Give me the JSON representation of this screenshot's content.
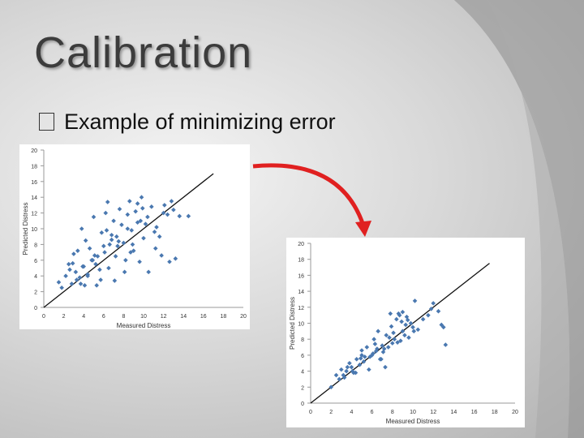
{
  "slide": {
    "title": "Calibration",
    "bullet": "Example of minimizing error"
  },
  "colors": {
    "points": "#4a78b0",
    "line": "#111111",
    "arrow": "#e02020"
  },
  "chart_data": [
    {
      "type": "scatter",
      "title": "",
      "xlabel": "Measured Distress",
      "ylabel": "Predicted Distress",
      "xlim": [
        0,
        20
      ],
      "ylim": [
        0,
        20
      ],
      "xticks": [
        0,
        2,
        4,
        6,
        8,
        10,
        12,
        14,
        16,
        18,
        20
      ],
      "yticks": [
        0,
        2,
        4,
        6,
        8,
        10,
        12,
        14,
        16,
        18,
        20
      ],
      "reference_line": {
        "x": [
          0,
          17
        ],
        "y": [
          0,
          17
        ]
      },
      "x": [
        1.5,
        1.8,
        2.2,
        2.5,
        2.8,
        3.0,
        3.2,
        3.4,
        3.6,
        3.8,
        4.0,
        4.2,
        4.4,
        4.6,
        4.8,
        5.0,
        5.2,
        5.4,
        5.6,
        5.8,
        6.0,
        6.2,
        6.4,
        6.6,
        6.8,
        7.0,
        7.2,
        7.4,
        7.6,
        7.8,
        8.0,
        8.2,
        8.4,
        8.6,
        8.8,
        9.0,
        9.2,
        9.4,
        9.6,
        9.8,
        10.0,
        10.4,
        10.8,
        11.2,
        11.6,
        12.0,
        12.4,
        12.8,
        13.2,
        13.6,
        2.6,
        3.3,
        4.1,
        4.9,
        5.7,
        6.5,
        7.3,
        8.1,
        8.9,
        9.7,
        10.5,
        11.3,
        12.1,
        3.9,
        5.1,
        6.3,
        7.5,
        8.7,
        9.9,
        11.1,
        6.8,
        7.1,
        5.3,
        4.4,
        2.9,
        3.7,
        6.1,
        8.4,
        9.4,
        12.6,
        14.5,
        13.0,
        11.8,
        10.2
      ],
      "y": [
        3.2,
        2.5,
        4.0,
        5.5,
        3.0,
        6.8,
        4.5,
        7.2,
        3.8,
        10.0,
        5.2,
        8.5,
        4.0,
        7.5,
        6.0,
        11.5,
        5.5,
        6.5,
        4.8,
        9.5,
        7.8,
        12.0,
        13.4,
        8.0,
        9.2,
        11.0,
        6.5,
        7.8,
        12.5,
        10.5,
        8.2,
        6.0,
        11.8,
        13.5,
        9.8,
        7.2,
        12.2,
        10.8,
        5.8,
        14.0,
        8.8,
        11.5,
        12.8,
        7.5,
        9.0,
        12.0,
        11.8,
        13.5,
        6.2,
        11.6,
        4.8,
        3.5,
        2.8,
        6.0,
        3.5,
        5.0,
        9.0,
        4.5,
        8.0,
        11.0,
        4.5,
        10.2,
        13.0,
        5.2,
        6.6,
        9.8,
        8.4,
        7.0,
        12.6,
        9.6,
        8.6,
        3.4,
        2.8,
        4.2,
        5.6,
        3.0,
        7.0,
        10.0,
        13.2,
        5.8,
        11.6,
        12.4,
        6.6,
        10.6
      ]
    },
    {
      "type": "scatter",
      "title": "",
      "xlabel": "Measured Distress",
      "ylabel": "Predicted Distress",
      "xlim": [
        0,
        20
      ],
      "ylim": [
        0,
        20
      ],
      "xticks": [
        0,
        2,
        4,
        6,
        8,
        10,
        12,
        14,
        16,
        18,
        20
      ],
      "yticks": [
        0,
        2,
        4,
        6,
        8,
        10,
        12,
        14,
        16,
        18,
        20
      ],
      "reference_line": {
        "x": [
          0,
          17.5
        ],
        "y": [
          0,
          17.5
        ]
      },
      "x": [
        2.0,
        2.5,
        2.8,
        3.0,
        3.2,
        3.5,
        3.8,
        4.0,
        4.2,
        4.5,
        4.8,
        5.0,
        5.2,
        5.5,
        5.8,
        6.0,
        6.2,
        6.4,
        6.6,
        6.8,
        7.0,
        7.2,
        7.4,
        7.6,
        7.8,
        8.0,
        8.2,
        8.4,
        8.6,
        8.8,
        9.0,
        9.2,
        9.4,
        9.6,
        9.8,
        10.0,
        10.2,
        10.5,
        11.0,
        11.5,
        12.0,
        12.5,
        13.0,
        13.2,
        3.6,
        4.4,
        5.3,
        6.1,
        6.9,
        7.7,
        8.5,
        9.3,
        10.1,
        5.7,
        6.5,
        7.3,
        8.1,
        8.9,
        4.1,
        4.9,
        6.3,
        7.1,
        7.9,
        8.7,
        9.5,
        3.3,
        11.8,
        12.8,
        9.0,
        5.0
      ],
      "y": [
        2.0,
        3.5,
        3.0,
        4.2,
        3.5,
        4.0,
        5.0,
        4.5,
        3.8,
        5.5,
        4.8,
        6.0,
        5.2,
        7.0,
        5.8,
        6.0,
        8.0,
        6.5,
        9.0,
        5.5,
        7.2,
        6.8,
        8.5,
        7.0,
        11.2,
        7.5,
        8.0,
        10.5,
        11.2,
        7.8,
        9.0,
        8.5,
        10.8,
        8.2,
        10.0,
        9.5,
        12.8,
        9.2,
        10.5,
        11.0,
        12.5,
        11.5,
        9.5,
        7.3,
        4.5,
        3.8,
        5.8,
        6.2,
        5.5,
        8.2,
        7.6,
        9.8,
        9.0,
        4.2,
        6.8,
        4.5,
        8.8,
        10.2,
        4.0,
        5.6,
        7.4,
        6.4,
        9.6,
        11.0,
        10.4,
        3.2,
        11.8,
        9.8,
        11.4,
        6.6
      ]
    }
  ]
}
